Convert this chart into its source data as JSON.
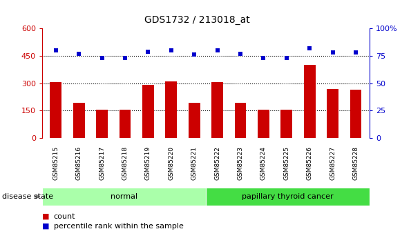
{
  "title": "GDS1732 / 213018_at",
  "categories": [
    "GSM85215",
    "GSM85216",
    "GSM85217",
    "GSM85218",
    "GSM85219",
    "GSM85220",
    "GSM85221",
    "GSM85222",
    "GSM85223",
    "GSM85224",
    "GSM85225",
    "GSM85226",
    "GSM85227",
    "GSM85228"
  ],
  "counts": [
    305,
    195,
    155,
    155,
    290,
    310,
    195,
    305,
    195,
    155,
    155,
    400,
    270,
    265
  ],
  "percentiles": [
    80,
    77,
    73,
    73,
    79,
    80,
    76,
    80,
    77,
    73,
    73,
    82,
    78,
    78
  ],
  "bar_color": "#cc0000",
  "dot_color": "#0000cc",
  "group_normal": {
    "label": "normal",
    "start": 0,
    "end": 7,
    "color": "#aaffaa"
  },
  "group_cancer": {
    "label": "papillary thyroid cancer",
    "start": 7,
    "end": 14,
    "color": "#44dd44"
  },
  "left_ylim": [
    0,
    600
  ],
  "right_ylim": [
    0,
    100
  ],
  "left_yticks": [
    0,
    150,
    300,
    450,
    600
  ],
  "right_yticks": [
    0,
    25,
    50,
    75,
    100
  ],
  "right_yticklabels": [
    "0",
    "25",
    "50",
    "75",
    "100%"
  ],
  "hgrid_values": [
    150,
    300,
    450
  ],
  "left_color": "#cc0000",
  "right_color": "#0000cc",
  "tick_bg": "#c8c8c8",
  "legend_count": "count",
  "legend_pct": "percentile rank within the sample",
  "disease_state_label": "disease state",
  "bar_width": 0.5,
  "fig_width": 6.08,
  "fig_height": 3.45,
  "dpi": 100
}
